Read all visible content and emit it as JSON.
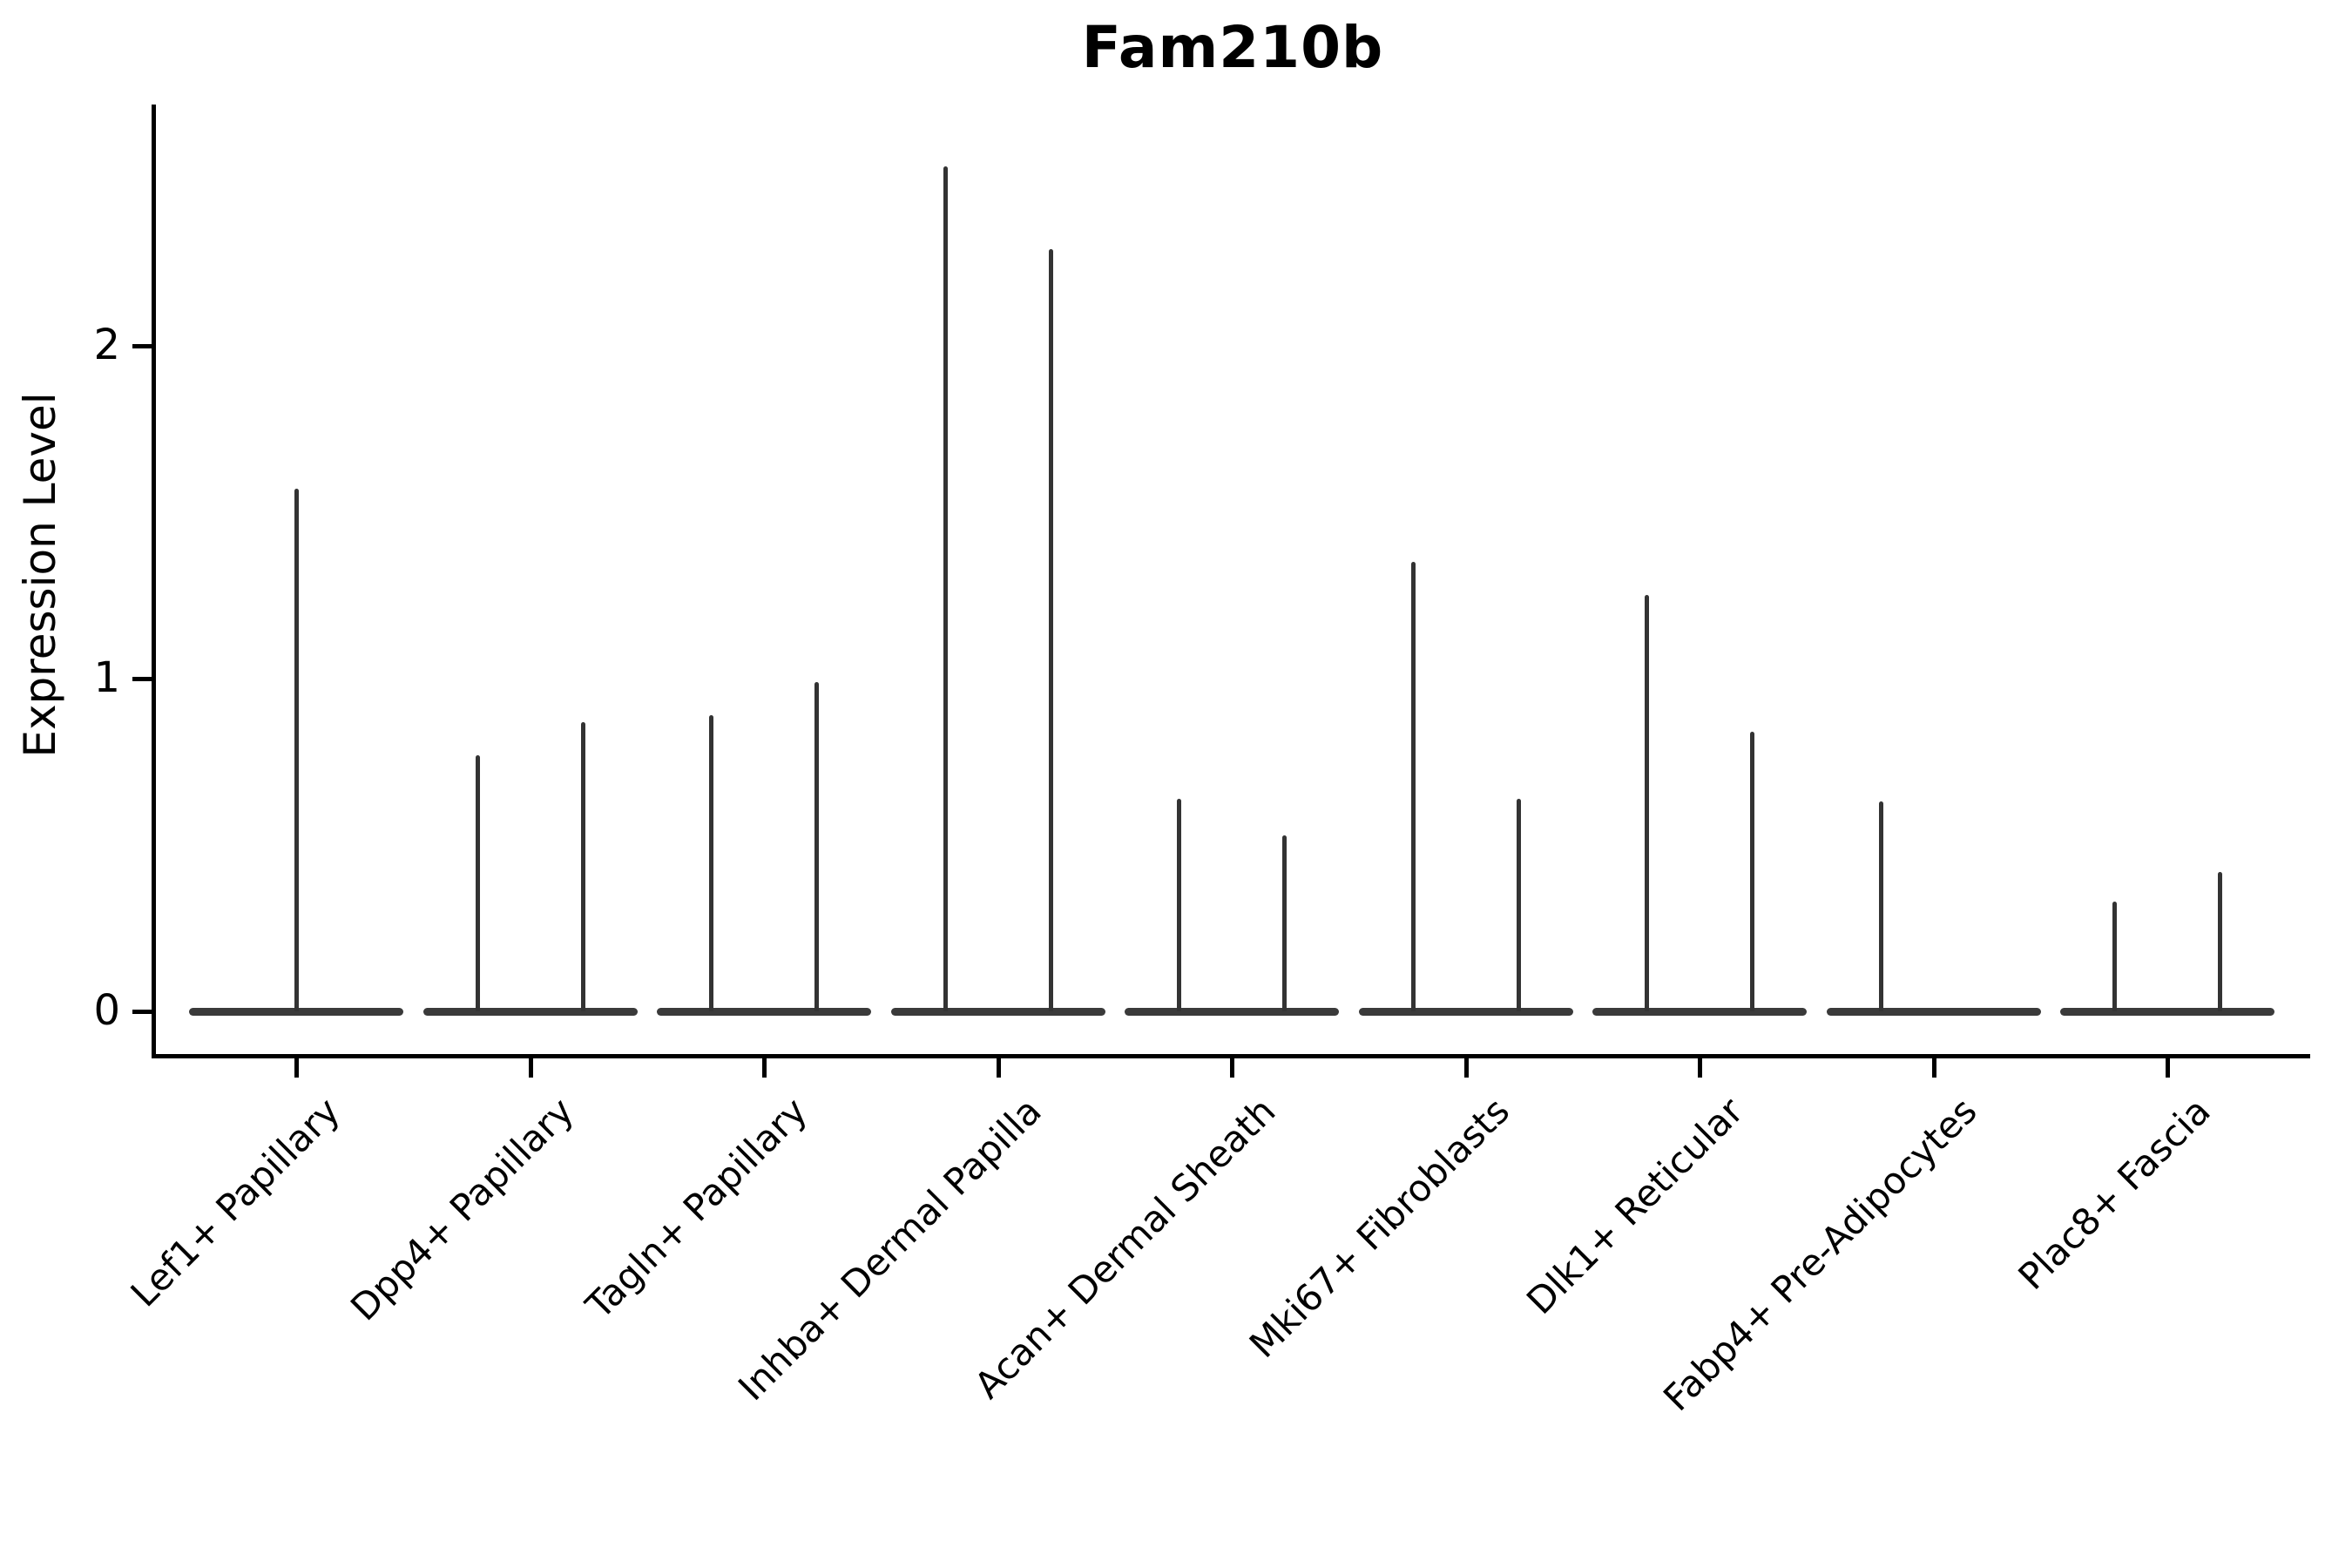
{
  "figure": {
    "title": "Fam210b",
    "ylabel": "Expression Level"
  },
  "chart_data": {
    "type": "violin",
    "title": "Fam210b",
    "xlabel": "",
    "ylabel": "Expression Level",
    "yticks": [
      0,
      1,
      2
    ],
    "ylim": [
      -0.13,
      2.75
    ],
    "grid": false,
    "legend": false,
    "categories": [
      "Lef1+ Papillary",
      "Dpp4+ Papillary",
      "Tagln+ Papillary",
      "Inhba+ Dermal Papilla",
      "Acan+ Dermal Sheath",
      "Mki67+ Fibroblasts",
      "Dlk1+ Reticular",
      "Fabp4+ Pre-Adipocytes",
      "Plac8+ Fascia"
    ],
    "violins": [
      {
        "category": "Lef1+ Papillary",
        "needles": [
          {
            "offset": "center",
            "value": 1.57
          }
        ]
      },
      {
        "category": "Dpp4+ Papillary",
        "needles": [
          {
            "offset": "left",
            "value": 0.77
          },
          {
            "offset": "right",
            "value": 0.87
          }
        ]
      },
      {
        "category": "Tagln+ Papillary",
        "needles": [
          {
            "offset": "left",
            "value": 0.89
          },
          {
            "offset": "right",
            "value": 0.99
          }
        ]
      },
      {
        "category": "Inhba+ Dermal Papilla",
        "needles": [
          {
            "offset": "left",
            "value": 2.54
          },
          {
            "offset": "right",
            "value": 2.29
          }
        ]
      },
      {
        "category": "Acan+ Dermal Sheath",
        "needles": [
          {
            "offset": "left",
            "value": 0.64
          },
          {
            "offset": "right",
            "value": 0.53
          }
        ]
      },
      {
        "category": "Mki67+ Fibroblasts",
        "needles": [
          {
            "offset": "left",
            "value": 1.35
          },
          {
            "offset": "right",
            "value": 0.64
          }
        ]
      },
      {
        "category": "Dlk1+ Reticular",
        "needles": [
          {
            "offset": "left",
            "value": 1.25
          },
          {
            "offset": "right",
            "value": 0.84
          }
        ]
      },
      {
        "category": "Fabp4+ Pre-Adipocytes",
        "needles": [
          {
            "offset": "left",
            "value": 0.63
          }
        ]
      },
      {
        "category": "Plac8+ Fascia",
        "needles": [
          {
            "offset": "left",
            "value": 0.33
          },
          {
            "offset": "right",
            "value": 0.42
          }
        ]
      }
    ],
    "baseline_value": 0,
    "violin_color": "#333333",
    "axis_color": "#000000"
  }
}
